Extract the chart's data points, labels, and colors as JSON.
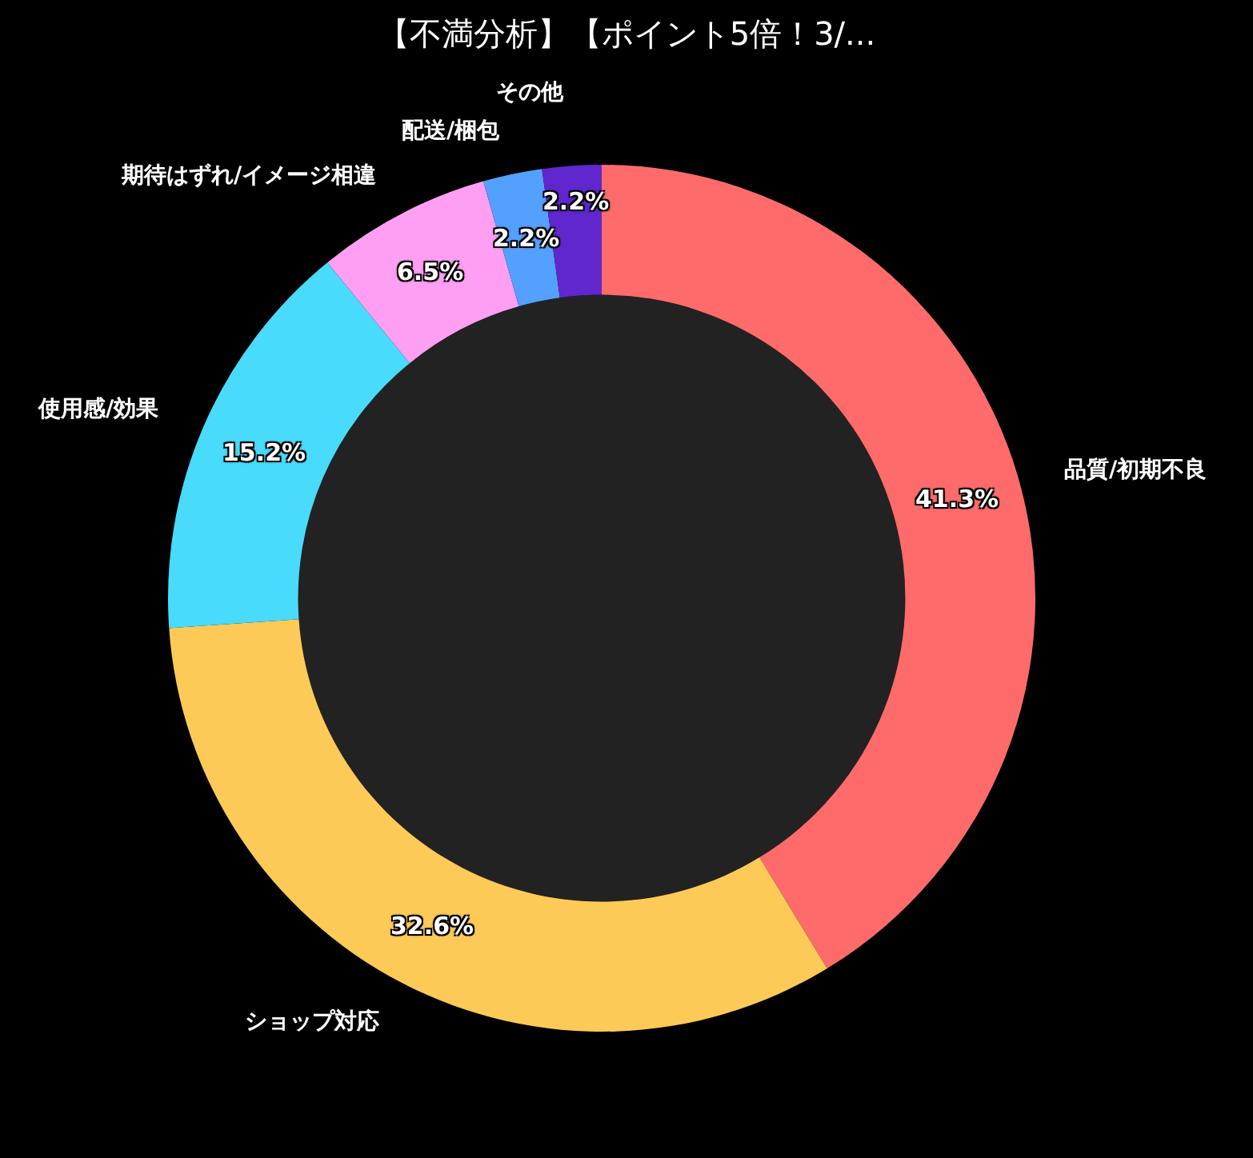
{
  "chart_data": {
    "type": "donut",
    "title": "【不満分析】【ポイント5倍！3/...",
    "categories": [
      "品質/初期不良",
      "ショップ対応",
      "使用感/効果",
      "期待はずれ/イメージ相違",
      "配送/梱包",
      "その他"
    ],
    "values": [
      41.3,
      32.6,
      15.2,
      6.5,
      2.2,
      2.2
    ],
    "colors": [
      "#ff6b6b",
      "#feca57",
      "#48dbfb",
      "#ff9ff3",
      "#54a0ff",
      "#5f27cd"
    ],
    "value_labels": [
      "41.3%",
      "32.6%",
      "15.2%",
      "6.5%",
      "2.2%",
      "2.2%"
    ]
  }
}
